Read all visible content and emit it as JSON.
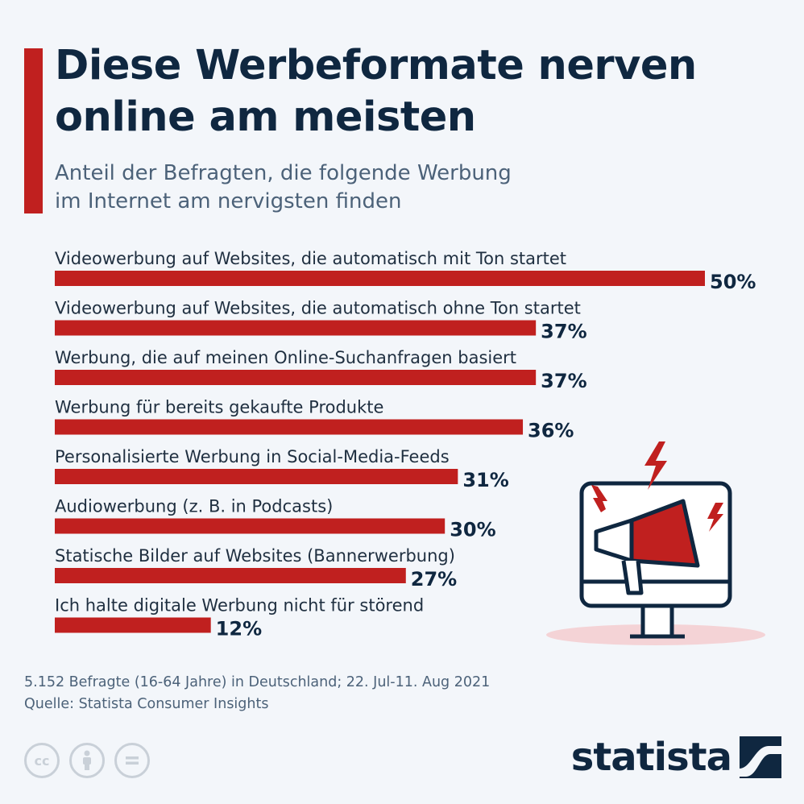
{
  "header": {
    "title_line1": "Diese Werbeformate nerven",
    "title_line2": "online am meisten",
    "subtitle_line1": "Anteil der Befragten, die folgende Werbung",
    "subtitle_line2": "im Internet am nervigsten finden"
  },
  "chart_data": {
    "type": "bar",
    "orientation": "horizontal",
    "title": "Diese Werbeformate nerven online am meisten",
    "subtitle": "Anteil der Befragten, die folgende Werbung im Internet am nervigsten finden",
    "categories": [
      "Videowerbung auf Websites, die automatisch mit Ton startet",
      "Videowerbung auf Websites, die automatisch ohne Ton startet",
      "Werbung, die auf meinen Online-Suchanfragen basiert",
      "Werbung für bereits gekaufte Produkte",
      "Personalisierte Werbung in Social-Media-Feeds",
      "Audiowerbung (z. B. in Podcasts)",
      "Statische Bilder auf Websites (Bannerwerbung)",
      "Ich halte digitale Werbung nicht für störend"
    ],
    "values": [
      50,
      37,
      37,
      36,
      31,
      30,
      27,
      12
    ],
    "value_labels": [
      "50%",
      "37%",
      "37%",
      "36%",
      "31%",
      "30%",
      "27%",
      "12%"
    ],
    "unit": "%",
    "bar_color": "#c0201f",
    "grid": false,
    "legend": "none"
  },
  "footer": {
    "note": "5.152 Befragte (16-64 Jahre) in Deutschland; 22. Jul-11. Aug 2021",
    "source": "Quelle: Statista Consumer Insights",
    "brand": "statista"
  },
  "license_icons": [
    "cc-icon",
    "person-icon",
    "equals-icon"
  ],
  "illustration_icon": "monitor-megaphone-icon",
  "colors": {
    "accent": "#c0201f",
    "title": "#0f2740",
    "subtitle": "#4c6279",
    "background": "#f3f6fa"
  }
}
